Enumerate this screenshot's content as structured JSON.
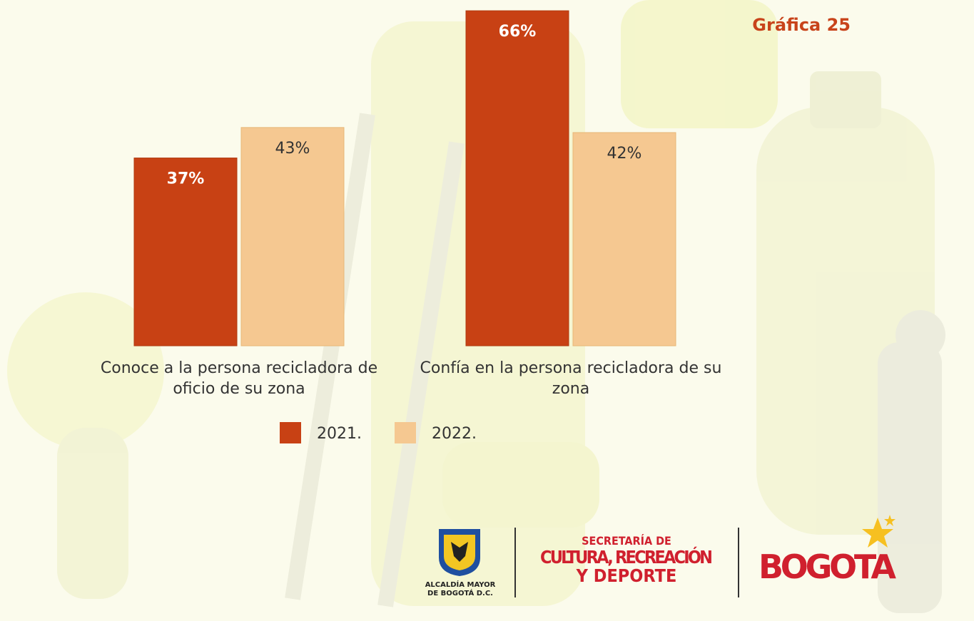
{
  "chart_data": {
    "type": "bar",
    "title": "Gráfica 25",
    "categories": [
      "Conoce a la persona recicladora de oficio de su zona",
      "Confía en la persona recicladora de su zona"
    ],
    "series": [
      {
        "name": "2021.",
        "color": "#c84114",
        "values": [
          37,
          66
        ],
        "value_labels": [
          "37%",
          "66%"
        ]
      },
      {
        "name": "2022.",
        "color": "#f5c891",
        "values": [
          43,
          42
        ],
        "value_labels": [
          "43%",
          "42%"
        ]
      }
    ]
  },
  "footer": {
    "alcaldia": [
      "ALCALDÍA MAYOR",
      "DE BOGOTÁ D.C."
    ],
    "secretaria": [
      "SECRETARÍA DE",
      "CULTURA, RECREACIÓN",
      "Y DEPORTE"
    ],
    "bogota": "BOGOTA"
  }
}
